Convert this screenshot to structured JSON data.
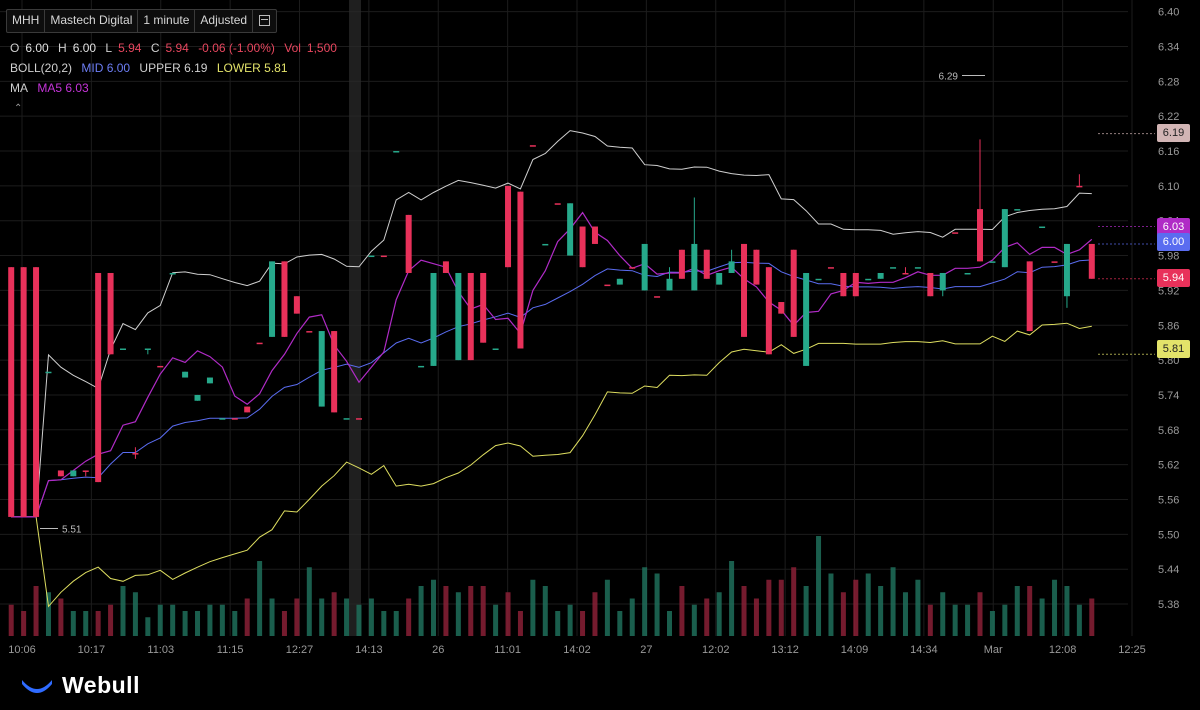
{
  "toolbar": {
    "symbol": "MHH",
    "name": "Mastech Digital",
    "interval": "1 minute",
    "adjust": "Adjusted",
    "menu_icon": "list-icon"
  },
  "legend": {
    "open_label": "O",
    "open": "6.00",
    "high_label": "H",
    "high": "6.00",
    "low_label": "L",
    "low": "5.94",
    "close_label": "C",
    "close": "5.94",
    "change": "-0.06 (-1.00%)",
    "vol_label": "Vol",
    "vol": "1,500",
    "boll_label": "BOLL(20,2)",
    "boll_mid": "MID 6.00",
    "boll_upper": "UPPER 6.19",
    "boll_lower": "LOWER 5.81",
    "ma_label": "MA",
    "ma5": "MA5 6.03"
  },
  "colors": {
    "up": "#26a98b",
    "down": "#e8315a",
    "boll_upper": "#cfcfcf",
    "boll_mid": "#5a6cf0",
    "boll_lower": "#dede60",
    "ma5": "#b02bc6",
    "grid": "#1c1c1c"
  },
  "tags": {
    "upper": {
      "text": "6.19",
      "bg": "#d2b5b5",
      "fg": "#222"
    },
    "ma5": {
      "text": "6.03",
      "bg": "#b02bc6",
      "fg": "#fff"
    },
    "mid": {
      "text": "6.00",
      "bg": "#5a6cf0",
      "fg": "#fff"
    },
    "close": {
      "text": "5.94",
      "bg": "#e8315a",
      "fg": "#fff"
    },
    "lower": {
      "text": "5.81",
      "bg": "#e3e36a",
      "fg": "#222"
    }
  },
  "brand": {
    "name": "Webull",
    "logo_icon": "webull-logo-icon"
  },
  "chart_data": {
    "type": "candlestick",
    "x_ticks": [
      "10:06",
      "10:17",
      "11:03",
      "11:15",
      "12:27",
      "14:13",
      "26",
      "11:01",
      "14:02",
      "27",
      "12:02",
      "13:12",
      "14:09",
      "14:34",
      "Mar",
      "12:08",
      "12:25"
    ],
    "y_ticks": [
      5.38,
      5.44,
      5.5,
      5.56,
      5.62,
      5.68,
      5.74,
      5.8,
      5.86,
      5.92,
      5.98,
      6.04,
      6.1,
      6.16,
      6.22,
      6.28,
      6.34,
      6.4
    ],
    "y_tick_labels": [
      "5.38",
      "5.44",
      "5.50",
      "5.56",
      "5.62",
      "5.68",
      "5.74",
      "5.80",
      "5.86",
      "5.92",
      "5.98",
      "6.04",
      "6.10",
      "6.16",
      "6.22",
      "6.28",
      "6.34",
      "6.40"
    ],
    "ylim": [
      5.325,
      6.42
    ],
    "annotations": [
      {
        "label": "6.29",
        "value": 6.29,
        "kind": "high"
      },
      {
        "label": "5.51",
        "value": 5.51,
        "kind": "low"
      }
    ],
    "candles": [
      {
        "o": 5.96,
        "h": 5.96,
        "l": 5.53,
        "c": 5.53
      },
      {
        "o": 5.96,
        "h": 5.96,
        "l": 5.53,
        "c": 5.53
      },
      {
        "o": 5.96,
        "h": 5.96,
        "l": 5.53,
        "c": 5.53
      },
      {
        "o": 5.78,
        "h": 5.78,
        "l": 5.78,
        "c": 5.78
      },
      {
        "o": 5.61,
        "h": 5.61,
        "l": 5.6,
        "c": 5.6
      },
      {
        "o": 5.6,
        "h": 5.61,
        "l": 5.6,
        "c": 5.61
      },
      {
        "o": 5.61,
        "h": 5.61,
        "l": 5.6,
        "c": 5.61
      },
      {
        "o": 5.95,
        "h": 5.95,
        "l": 5.59,
        "c": 5.59
      },
      {
        "o": 5.95,
        "h": 5.95,
        "l": 5.81,
        "c": 5.81
      },
      {
        "o": 5.82,
        "h": 5.82,
        "l": 5.82,
        "c": 5.82
      },
      {
        "o": 5.64,
        "h": 5.65,
        "l": 5.63,
        "c": 5.64
      },
      {
        "o": 5.82,
        "h": 5.82,
        "l": 5.81,
        "c": 5.82
      },
      {
        "o": 5.79,
        "h": 5.79,
        "l": 5.79,
        "c": 5.79
      },
      {
        "o": 5.95,
        "h": 5.95,
        "l": 5.95,
        "c": 5.95
      },
      {
        "o": 5.77,
        "h": 5.78,
        "l": 5.77,
        "c": 5.78
      },
      {
        "o": 5.73,
        "h": 5.74,
        "l": 5.73,
        "c": 5.74
      },
      {
        "o": 5.76,
        "h": 5.77,
        "l": 5.76,
        "c": 5.77
      },
      {
        "o": 5.7,
        "h": 5.7,
        "l": 5.7,
        "c": 5.7
      },
      {
        "o": 5.7,
        "h": 5.7,
        "l": 5.7,
        "c": 5.7
      },
      {
        "o": 5.72,
        "h": 5.72,
        "l": 5.71,
        "c": 5.71
      },
      {
        "o": 5.83,
        "h": 5.83,
        "l": 5.83,
        "c": 5.83
      },
      {
        "o": 5.84,
        "h": 5.97,
        "l": 5.84,
        "c": 5.97
      },
      {
        "o": 5.97,
        "h": 5.97,
        "l": 5.84,
        "c": 5.84
      },
      {
        "o": 5.91,
        "h": 5.91,
        "l": 5.88,
        "c": 5.88
      },
      {
        "o": 5.85,
        "h": 5.85,
        "l": 5.85,
        "c": 5.85
      },
      {
        "o": 5.72,
        "h": 5.85,
        "l": 5.72,
        "c": 5.85
      },
      {
        "o": 5.85,
        "h": 5.85,
        "l": 5.71,
        "c": 5.71
      },
      {
        "o": 5.7,
        "h": 5.7,
        "l": 5.7,
        "c": 5.7
      },
      {
        "o": 5.7,
        "h": 5.7,
        "l": 5.7,
        "c": 5.7
      },
      {
        "o": 5.98,
        "h": 5.98,
        "l": 5.98,
        "c": 5.98
      },
      {
        "o": 5.98,
        "h": 5.98,
        "l": 5.98,
        "c": 5.98
      },
      {
        "o": 6.16,
        "h": 6.16,
        "l": 6.16,
        "c": 6.16
      },
      {
        "o": 6.05,
        "h": 6.05,
        "l": 5.95,
        "c": 5.95
      },
      {
        "o": 5.79,
        "h": 5.79,
        "l": 5.79,
        "c": 5.79
      },
      {
        "o": 5.79,
        "h": 5.95,
        "l": 5.79,
        "c": 5.95
      },
      {
        "o": 5.97,
        "h": 5.97,
        "l": 5.95,
        "c": 5.95
      },
      {
        "o": 5.8,
        "h": 5.95,
        "l": 5.8,
        "c": 5.95
      },
      {
        "o": 5.95,
        "h": 5.95,
        "l": 5.8,
        "c": 5.8
      },
      {
        "o": 5.95,
        "h": 5.95,
        "l": 5.83,
        "c": 5.83
      },
      {
        "o": 5.82,
        "h": 5.82,
        "l": 5.82,
        "c": 5.82
      },
      {
        "o": 6.1,
        "h": 6.1,
        "l": 5.96,
        "c": 5.96
      },
      {
        "o": 6.09,
        "h": 6.09,
        "l": 5.82,
        "c": 5.82
      },
      {
        "o": 6.17,
        "h": 6.17,
        "l": 6.17,
        "c": 6.17
      },
      {
        "o": 6.0,
        "h": 6.0,
        "l": 6.0,
        "c": 6.0
      },
      {
        "o": 6.07,
        "h": 6.07,
        "l": 6.07,
        "c": 6.07
      },
      {
        "o": 5.98,
        "h": 6.07,
        "l": 5.98,
        "c": 6.07
      },
      {
        "o": 6.03,
        "h": 6.03,
        "l": 5.96,
        "c": 5.96
      },
      {
        "o": 6.03,
        "h": 6.03,
        "l": 6.0,
        "c": 6.0
      },
      {
        "o": 5.93,
        "h": 5.93,
        "l": 5.93,
        "c": 5.93
      },
      {
        "o": 5.93,
        "h": 5.94,
        "l": 5.93,
        "c": 5.94
      },
      {
        "o": 5.96,
        "h": 5.96,
        "l": 5.96,
        "c": 5.96
      },
      {
        "o": 5.92,
        "h": 6.0,
        "l": 5.92,
        "c": 6.0
      },
      {
        "o": 5.91,
        "h": 5.91,
        "l": 5.91,
        "c": 5.91
      },
      {
        "o": 5.92,
        "h": 5.96,
        "l": 5.92,
        "c": 5.94
      },
      {
        "o": 5.99,
        "h": 5.99,
        "l": 5.94,
        "c": 5.94
      },
      {
        "o": 5.92,
        "h": 6.08,
        "l": 5.92,
        "c": 6.0
      },
      {
        "o": 5.99,
        "h": 5.99,
        "l": 5.94,
        "c": 5.94
      },
      {
        "o": 5.93,
        "h": 5.95,
        "l": 5.93,
        "c": 5.95
      },
      {
        "o": 5.95,
        "h": 5.99,
        "l": 5.95,
        "c": 5.97
      },
      {
        "o": 6.0,
        "h": 6.0,
        "l": 5.84,
        "c": 5.84
      },
      {
        "o": 5.99,
        "h": 5.99,
        "l": 5.93,
        "c": 5.93
      },
      {
        "o": 5.96,
        "h": 5.96,
        "l": 5.81,
        "c": 5.81
      },
      {
        "o": 5.9,
        "h": 5.9,
        "l": 5.88,
        "c": 5.88
      },
      {
        "o": 5.99,
        "h": 5.99,
        "l": 5.84,
        "c": 5.84
      },
      {
        "o": 5.79,
        "h": 5.95,
        "l": 5.79,
        "c": 5.95
      },
      {
        "o": 5.94,
        "h": 5.94,
        "l": 5.94,
        "c": 5.94
      },
      {
        "o": 5.96,
        "h": 5.96,
        "l": 5.96,
        "c": 5.96
      },
      {
        "o": 5.95,
        "h": 5.95,
        "l": 5.91,
        "c": 5.91
      },
      {
        "o": 5.95,
        "h": 5.95,
        "l": 5.91,
        "c": 5.91
      },
      {
        "o": 5.94,
        "h": 5.94,
        "l": 5.94,
        "c": 5.94
      },
      {
        "o": 5.94,
        "h": 5.95,
        "l": 5.94,
        "c": 5.95
      },
      {
        "o": 5.96,
        "h": 5.96,
        "l": 5.96,
        "c": 5.96
      },
      {
        "o": 5.95,
        "h": 5.96,
        "l": 5.95,
        "c": 5.95
      },
      {
        "o": 5.96,
        "h": 5.96,
        "l": 5.96,
        "c": 5.96
      },
      {
        "o": 5.95,
        "h": 5.95,
        "l": 5.91,
        "c": 5.91
      },
      {
        "o": 5.92,
        "h": 5.95,
        "l": 5.91,
        "c": 5.95
      },
      {
        "o": 6.02,
        "h": 6.02,
        "l": 6.02,
        "c": 6.02
      },
      {
        "o": 5.95,
        "h": 5.95,
        "l": 5.95,
        "c": 5.95
      },
      {
        "o": 6.06,
        "h": 6.18,
        "l": 5.97,
        "c": 5.97
      },
      {
        "o": 5.97,
        "h": 5.97,
        "l": 5.97,
        "c": 5.97
      },
      {
        "o": 5.96,
        "h": 6.06,
        "l": 5.96,
        "c": 6.06
      },
      {
        "o": 6.06,
        "h": 6.06,
        "l": 6.06,
        "c": 6.06
      },
      {
        "o": 5.97,
        "h": 5.97,
        "l": 5.85,
        "c": 5.85
      },
      {
        "o": 6.03,
        "h": 6.03,
        "l": 6.03,
        "c": 6.03
      },
      {
        "o": 5.97,
        "h": 5.97,
        "l": 5.97,
        "c": 5.97
      },
      {
        "o": 5.91,
        "h": 6.0,
        "l": 5.89,
        "c": 6.0
      },
      {
        "o": 6.1,
        "h": 6.12,
        "l": 6.1,
        "c": 6.1
      },
      {
        "o": 6.0,
        "h": 6.0,
        "l": 5.94,
        "c": 5.94
      }
    ],
    "volume": [
      5,
      4,
      8,
      7,
      6,
      4,
      4,
      4,
      5,
      8,
      7,
      3,
      5,
      5,
      4,
      4,
      5,
      5,
      4,
      6,
      12,
      6,
      4,
      6,
      11,
      6,
      7,
      6,
      5,
      6,
      4,
      4,
      6,
      8,
      9,
      8,
      7,
      8,
      8,
      5,
      7,
      4,
      9,
      8,
      4,
      5,
      4,
      7,
      9,
      4,
      6,
      11,
      10,
      4,
      8,
      5,
      6,
      7,
      12,
      8,
      6,
      9,
      9,
      11,
      8,
      16,
      10,
      7,
      9,
      10,
      8,
      11,
      7,
      9,
      5,
      7,
      5,
      5,
      7,
      4,
      5,
      8,
      8,
      6,
      9,
      8,
      5,
      6
    ]
  }
}
